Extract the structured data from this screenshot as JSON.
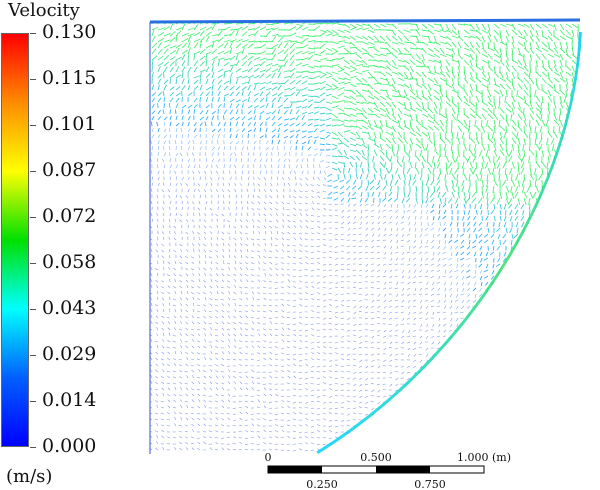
{
  "legend": {
    "title": "Velocity",
    "unit": "(m/s)",
    "ticks": [
      "0.130",
      "0.115",
      "0.101",
      "0.087",
      "0.072",
      "0.058",
      "0.043",
      "0.029",
      "0.014",
      "0.000"
    ],
    "min": 0.0,
    "max": 0.13,
    "colors": [
      "#ff0000",
      "#ff8c00",
      "#ffff00",
      "#00e000",
      "#00ffff",
      "#0060ff",
      "#0000ff"
    ]
  },
  "scale_bar": {
    "top_labels": [
      "0",
      "0.500",
      "1.000 (m)"
    ],
    "bottom_labels": [
      "0.250",
      "0.750"
    ]
  },
  "plot": {
    "type": "velocity vector field",
    "colors": {
      "slow": "#2233dd",
      "mid": "#00aaff",
      "edge_fast": "#22ee55"
    }
  }
}
